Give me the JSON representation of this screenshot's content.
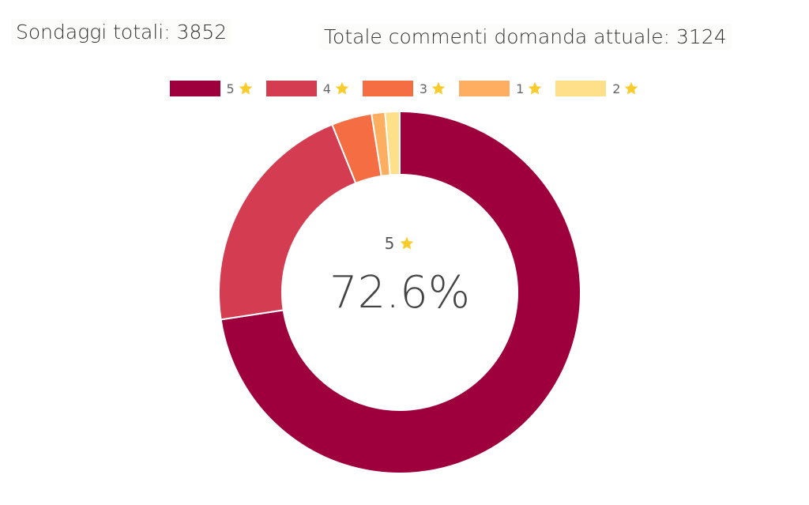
{
  "stats": {
    "total_surveys": "Sondaggi totali: 3852",
    "total_comments": "Totale commenti domanda attuale: 3124"
  },
  "star_color": "#f9cc2d",
  "chart_data": {
    "type": "pie",
    "subtype": "doughnut",
    "title": "",
    "legend_position": "top",
    "categories": [
      "5",
      "4",
      "3",
      "1",
      "2"
    ],
    "values": [
      72.6,
      21.3,
      3.6,
      1.2,
      1.3
    ],
    "colors": [
      "#9e003d",
      "#d43d51",
      "#f46d43",
      "#fdae61",
      "#fee08b"
    ],
    "center": {
      "category": "5",
      "value_label": "72.6%"
    }
  }
}
